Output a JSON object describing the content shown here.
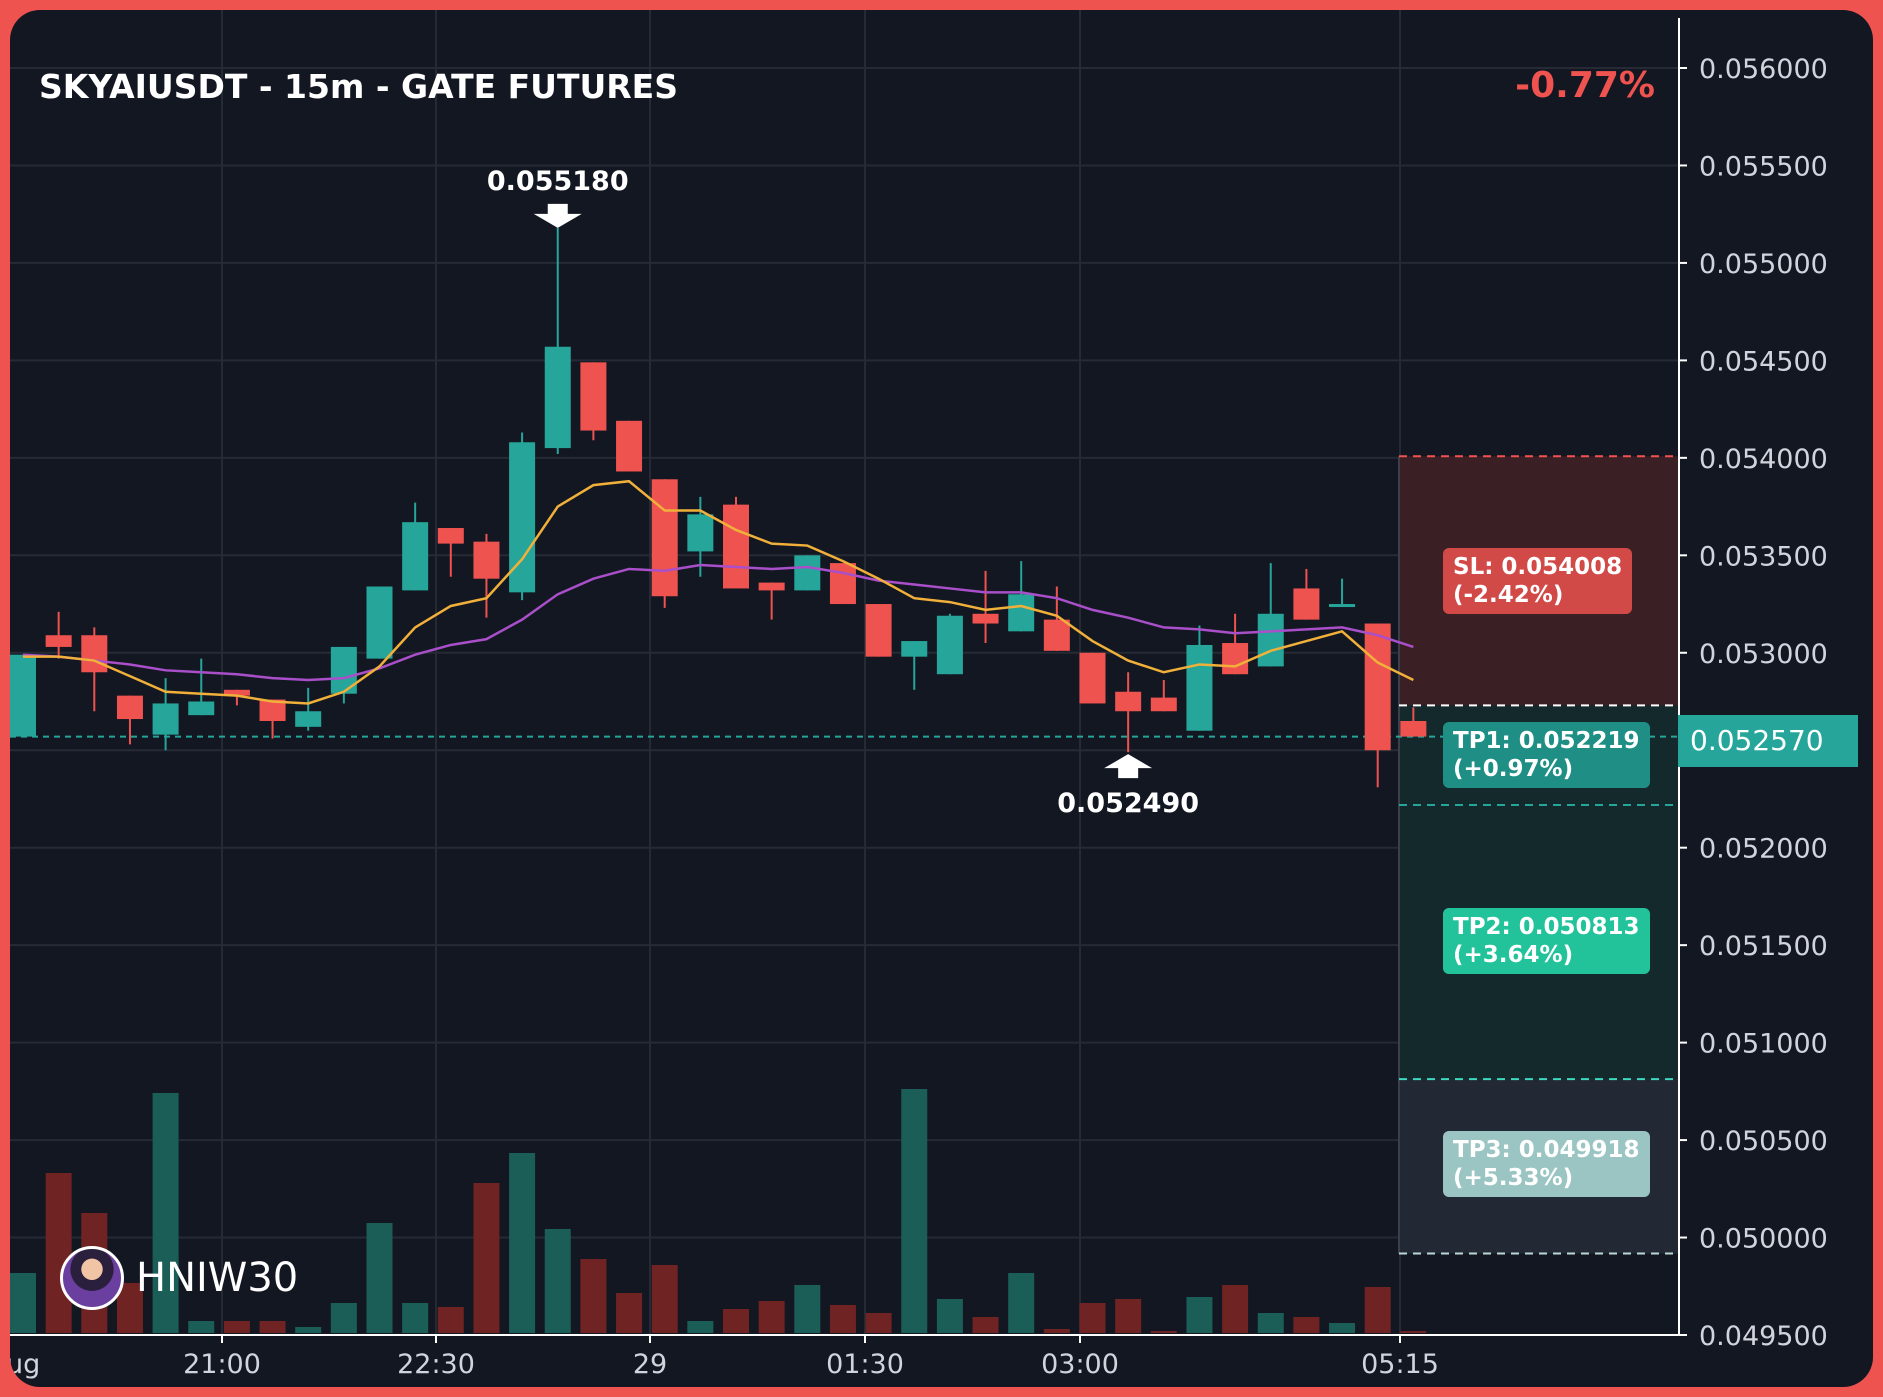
{
  "header": {
    "title": "SKYAIUSDT - 15m - GATE FUTURES",
    "change": "-0.77%"
  },
  "watermark": {
    "text": "HNIW30"
  },
  "colors": {
    "background": "#131722",
    "frame": "#ef5350",
    "up": "#26a69a",
    "down": "#ef5350",
    "ma_fast": "#f0b03a",
    "ma_slow": "#a94fc9",
    "sl_zone": "#3a1f25",
    "tp_zone": "#13292c"
  },
  "levels": {
    "sl": {
      "label": "SL: 0.054008\n(-2.42%)",
      "price": 0.054008
    },
    "entry": {
      "price": 0.05273
    },
    "tp1": {
      "label": "TP1: 0.052219\n(+0.97%)",
      "price": 0.052219
    },
    "tp2": {
      "label": "TP2: 0.050813\n(+3.64%)",
      "price": 0.050813
    },
    "tp3": {
      "label": "TP3: 0.049918\n(+5.33%)",
      "price": 0.049918
    }
  },
  "chart_data": {
    "type": "candlestick",
    "x_labels": [
      "ug",
      "21:00",
      "22:30",
      "29",
      "01:30",
      "03:00",
      "05:15"
    ],
    "y_ticks": [
      0.0495,
      0.05,
      0.0505,
      0.051,
      0.0515,
      0.052,
      0.0525,
      0.053,
      0.0535,
      0.054,
      0.0545,
      0.055,
      0.0555,
      0.056
    ],
    "y_tick_labels": [
      "0.049500",
      "0.050000",
      "0.050500",
      "0.051000",
      "0.051500",
      "0.052000",
      "0.052500",
      "0.053000",
      "0.053500",
      "0.054000",
      "0.054500",
      "0.055000",
      "0.055500",
      "0.056000"
    ],
    "ylim": [
      0.0495,
      0.0562
    ],
    "last_price": 0.05257,
    "last_price_label": "0.052570",
    "annotations": [
      {
        "label": "0.055180",
        "bar": 15,
        "price": 0.05518,
        "type": "high"
      },
      {
        "label": "0.052490",
        "bar": 31,
        "price": 0.05249,
        "type": "low"
      }
    ],
    "candles": [
      {
        "o": 0.05257,
        "h": 0.05299,
        "l": 0.05257,
        "c": 0.05299,
        "v": 30
      },
      {
        "o": 0.05309,
        "h": 0.05321,
        "l": 0.05297,
        "c": 0.05303,
        "v": 80
      },
      {
        "o": 0.05309,
        "h": 0.05313,
        "l": 0.0527,
        "c": 0.0529,
        "v": 60
      },
      {
        "o": 0.05278,
        "h": 0.05278,
        "l": 0.05253,
        "c": 0.05266,
        "v": 25
      },
      {
        "o": 0.05258,
        "h": 0.05287,
        "l": 0.0525,
        "c": 0.05274,
        "v": 120
      },
      {
        "o": 0.05268,
        "h": 0.05297,
        "l": 0.05268,
        "c": 0.05275,
        "v": 6
      },
      {
        "o": 0.05281,
        "h": 0.05281,
        "l": 0.05273,
        "c": 0.05278,
        "v": 6
      },
      {
        "o": 0.05276,
        "h": 0.05276,
        "l": 0.05256,
        "c": 0.05265,
        "v": 6
      },
      {
        "o": 0.05262,
        "h": 0.05282,
        "l": 0.0526,
        "c": 0.0527,
        "v": 3
      },
      {
        "o": 0.05279,
        "h": 0.05303,
        "l": 0.05274,
        "c": 0.05303,
        "v": 15
      },
      {
        "o": 0.05297,
        "h": 0.05334,
        "l": 0.05297,
        "c": 0.05334,
        "v": 55
      },
      {
        "o": 0.05332,
        "h": 0.05377,
        "l": 0.05332,
        "c": 0.05367,
        "v": 15
      },
      {
        "o": 0.05364,
        "h": 0.05364,
        "l": 0.05339,
        "c": 0.05356,
        "v": 13
      },
      {
        "o": 0.05357,
        "h": 0.05361,
        "l": 0.05318,
        "c": 0.05338,
        "v": 75
      },
      {
        "o": 0.05331,
        "h": 0.05413,
        "l": 0.05327,
        "c": 0.05408,
        "v": 90
      },
      {
        "o": 0.05405,
        "h": 0.05518,
        "l": 0.05402,
        "c": 0.05457,
        "v": 52
      },
      {
        "o": 0.05449,
        "h": 0.05449,
        "l": 0.05409,
        "c": 0.05414,
        "v": 37
      },
      {
        "o": 0.05419,
        "h": 0.05419,
        "l": 0.05393,
        "c": 0.05393,
        "v": 20
      },
      {
        "o": 0.05389,
        "h": 0.05389,
        "l": 0.05323,
        "c": 0.05329,
        "v": 34
      },
      {
        "o": 0.05352,
        "h": 0.0538,
        "l": 0.05339,
        "c": 0.05371,
        "v": 6
      },
      {
        "o": 0.05376,
        "h": 0.0538,
        "l": 0.05333,
        "c": 0.05333,
        "v": 12
      },
      {
        "o": 0.05336,
        "h": 0.05336,
        "l": 0.05317,
        "c": 0.05332,
        "v": 16
      },
      {
        "o": 0.05332,
        "h": 0.0535,
        "l": 0.05332,
        "c": 0.0535,
        "v": 24
      },
      {
        "o": 0.05346,
        "h": 0.05346,
        "l": 0.05325,
        "c": 0.05325,
        "v": 14
      },
      {
        "o": 0.05325,
        "h": 0.05325,
        "l": 0.05298,
        "c": 0.05298,
        "v": 10
      },
      {
        "o": 0.05298,
        "h": 0.05306,
        "l": 0.05281,
        "c": 0.05306,
        "v": 122
      },
      {
        "o": 0.05289,
        "h": 0.0532,
        "l": 0.05289,
        "c": 0.05319,
        "v": 17
      },
      {
        "o": 0.0532,
        "h": 0.05342,
        "l": 0.05305,
        "c": 0.05315,
        "v": 8
      },
      {
        "o": 0.05311,
        "h": 0.05347,
        "l": 0.05311,
        "c": 0.0533,
        "v": 30
      },
      {
        "o": 0.05317,
        "h": 0.05334,
        "l": 0.05301,
        "c": 0.05301,
        "v": 2
      },
      {
        "o": 0.053,
        "h": 0.053,
        "l": 0.05274,
        "c": 0.05274,
        "v": 15
      },
      {
        "o": 0.0528,
        "h": 0.0529,
        "l": 0.05249,
        "c": 0.0527,
        "v": 17
      },
      {
        "o": 0.05277,
        "h": 0.05286,
        "l": 0.0527,
        "c": 0.0527,
        "v": 1
      },
      {
        "o": 0.0526,
        "h": 0.05314,
        "l": 0.0526,
        "c": 0.05304,
        "v": 18
      },
      {
        "o": 0.05305,
        "h": 0.0532,
        "l": 0.05289,
        "c": 0.05289,
        "v": 24
      },
      {
        "o": 0.05293,
        "h": 0.05346,
        "l": 0.05293,
        "c": 0.0532,
        "v": 10
      },
      {
        "o": 0.05333,
        "h": 0.05343,
        "l": 0.05317,
        "c": 0.05317,
        "v": 8
      },
      {
        "o": 0.05324,
        "h": 0.05338,
        "l": 0.05324,
        "c": 0.05325,
        "v": 5
      },
      {
        "o": 0.05315,
        "h": 0.05315,
        "l": 0.05231,
        "c": 0.0525,
        "v": 23
      },
      {
        "o": 0.05265,
        "h": 0.05272,
        "l": 0.05257,
        "c": 0.05257,
        "v": 1
      }
    ],
    "ma_fast": [
      0.05298,
      0.05298,
      0.05296,
      0.05288,
      0.0528,
      0.05279,
      0.05278,
      0.05275,
      0.05274,
      0.0528,
      0.05293,
      0.05313,
      0.05324,
      0.05328,
      0.05348,
      0.05375,
      0.05386,
      0.05388,
      0.05373,
      0.05373,
      0.05363,
      0.05356,
      0.05355,
      0.05347,
      0.05338,
      0.05328,
      0.05326,
      0.05322,
      0.05324,
      0.05319,
      0.05306,
      0.05296,
      0.0529,
      0.05294,
      0.05293,
      0.05301,
      0.05306,
      0.05311,
      0.05295,
      0.05286
    ],
    "ma_slow": [
      0.05299,
      0.05298,
      0.05296,
      0.05294,
      0.05291,
      0.0529,
      0.05289,
      0.05287,
      0.05286,
      0.05287,
      0.05292,
      0.05299,
      0.05304,
      0.05307,
      0.05317,
      0.0533,
      0.05338,
      0.05343,
      0.05342,
      0.05345,
      0.05344,
      0.05343,
      0.05344,
      0.05341,
      0.05337,
      0.05335,
      0.05333,
      0.05331,
      0.05331,
      0.05328,
      0.05322,
      0.05318,
      0.05313,
      0.05312,
      0.0531,
      0.05311,
      0.05312,
      0.05313,
      0.05309,
      0.05303
    ]
  }
}
